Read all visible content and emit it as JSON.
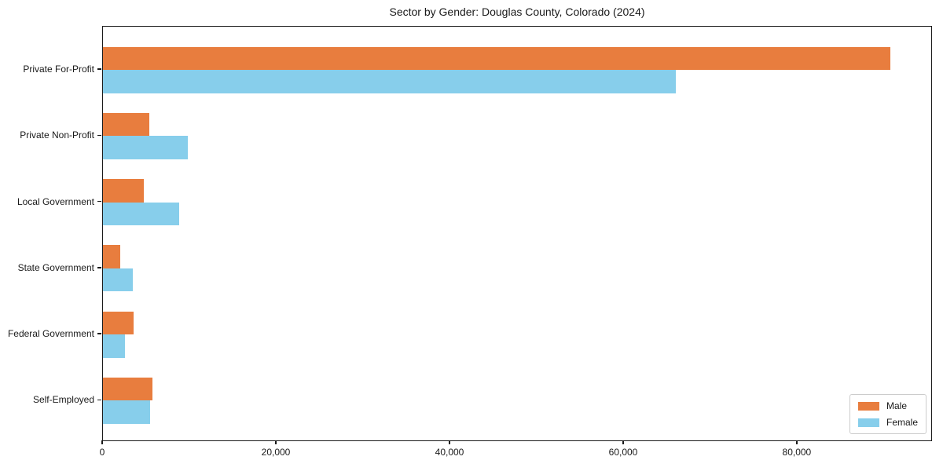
{
  "chart_data": {
    "type": "bar",
    "orientation": "horizontal",
    "title": "Sector by Gender: Douglas County, Colorado (2024)",
    "categories": [
      "Private For-Profit",
      "Private Non-Profit",
      "Local Government",
      "State Government",
      "Federal Government",
      "Self-Employed"
    ],
    "series": [
      {
        "name": "Male",
        "color": "#e87d3e",
        "values": [
          90700,
          5300,
          4700,
          2000,
          3500,
          5700
        ]
      },
      {
        "name": "Female",
        "color": "#87ceeb",
        "values": [
          66000,
          9800,
          8800,
          3400,
          2500,
          5400
        ]
      }
    ],
    "xlabel": "",
    "ylabel": "",
    "xlim": [
      0,
      95300
    ],
    "xticks": [
      0,
      20000,
      40000,
      60000,
      80000
    ],
    "xtick_labels": [
      "0",
      "20,000",
      "40,000",
      "60,000",
      "80,000"
    ],
    "grid": false,
    "legend": {
      "position": "lower right",
      "labels": [
        "Male",
        "Female"
      ]
    },
    "colors": {
      "axis": "#1a1a1a",
      "background": "#ffffff",
      "legend_border": "#cccccc"
    }
  }
}
